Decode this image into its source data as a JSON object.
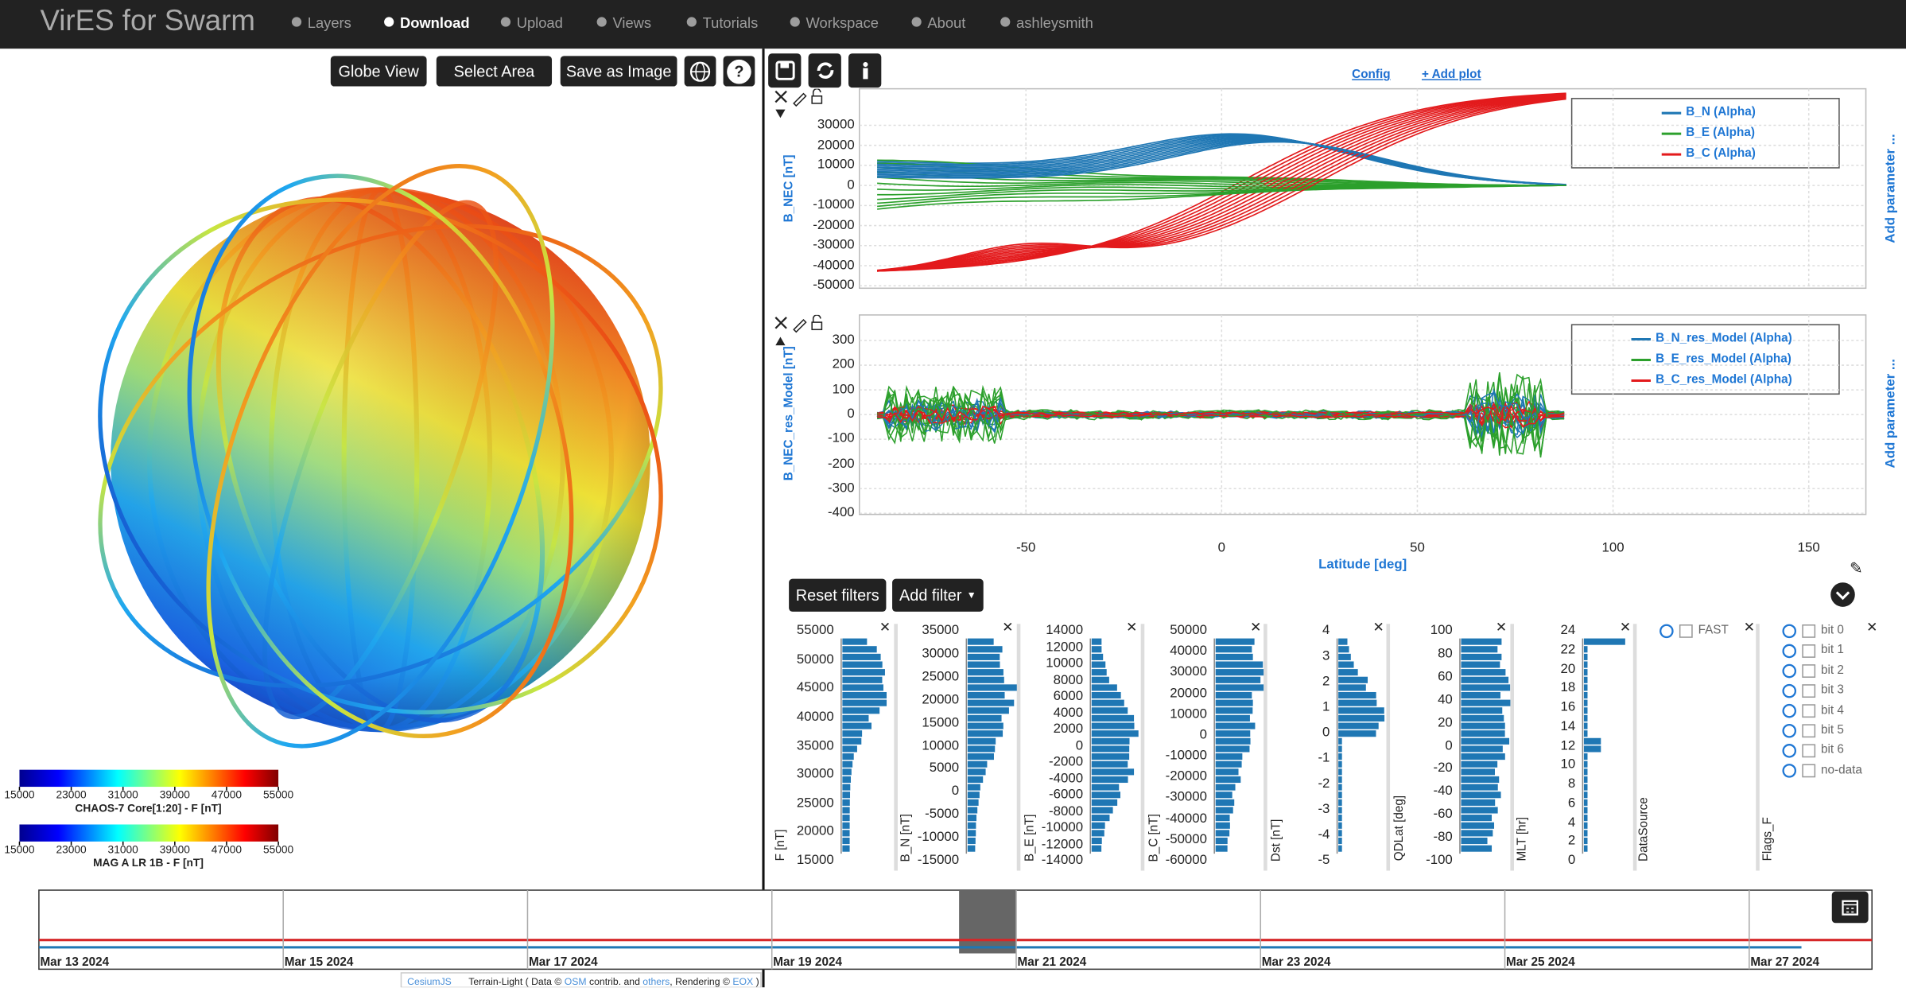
{
  "navbar": {
    "brand": "VirES for Swarm",
    "items": [
      "Layers",
      "Download",
      "Upload",
      "Views",
      "Tutorials",
      "Workspace",
      "About",
      "ashleysmith"
    ]
  },
  "globe_panel": {
    "buttons": [
      "Globe View",
      "Select Area",
      "Save as Image"
    ],
    "help": "?",
    "colorbars": [
      {
        "ticks": [
          15000,
          23000,
          31000,
          39000,
          47000,
          55000
        ],
        "label": "CHAOS-7 Core[1:20] - F [nT]"
      },
      {
        "ticks": [
          15000,
          23000,
          31000,
          39000,
          47000,
          55000
        ],
        "label": "MAG A LR 1B - F [nT]"
      }
    ]
  },
  "analytics": {
    "links": [
      "Config",
      "+ Add plot"
    ],
    "plots": [
      {
        "ylabel": "B_NEC [nT]",
        "yticks": [
          30000,
          20000,
          10000,
          0,
          -10000,
          -20000,
          -30000,
          -40000,
          -50000
        ],
        "legend": [
          "B_N (Alpha)",
          "B_E (Alpha)",
          "B_C (Alpha)"
        ],
        "side": "Add parameter ..."
      },
      {
        "ylabel": "B_NEC_res_Model [nT]",
        "yticks": [
          300,
          200,
          100,
          0,
          -100,
          -200,
          -300,
          -400
        ],
        "legend": [
          "B_N_res_Model (Alpha)",
          "B_E_res_Model (Alpha)",
          "B_C_res_Model (Alpha)"
        ],
        "side": "Add parameter ..."
      }
    ],
    "xticks": [
      -50,
      0,
      50,
      100,
      150
    ],
    "xlabel": "Latitude [deg]"
  },
  "filters": {
    "buttons": [
      "Reset filters",
      "Add filter"
    ],
    "histograms": [
      {
        "label": "F [nT]",
        "ticks": [
          55000,
          50000,
          45000,
          40000,
          35000,
          30000,
          25000,
          20000,
          15000
        ]
      },
      {
        "label": "B_N [nT]",
        "ticks": [
          35000,
          30000,
          25000,
          20000,
          15000,
          10000,
          5000,
          0,
          -5000,
          -10000,
          -15000
        ]
      },
      {
        "label": "B_E [nT]",
        "ticks": [
          14000,
          12000,
          10000,
          8000,
          6000,
          4000,
          2000,
          0,
          -2000,
          -4000,
          -6000,
          -8000,
          -10000,
          -12000,
          -14000
        ]
      },
      {
        "label": "B_C [nT]",
        "ticks": [
          50000,
          40000,
          30000,
          20000,
          10000,
          0,
          -10000,
          -20000,
          -30000,
          -40000,
          -50000,
          -60000
        ]
      },
      {
        "label": "Dst [nT]",
        "ticks": [
          4,
          3,
          2,
          1,
          0,
          -1,
          -2,
          -3,
          -4,
          -5
        ]
      },
      {
        "label": "QDLat [deg]",
        "ticks": [
          100,
          80,
          60,
          40,
          20,
          0,
          -20,
          -40,
          -60,
          -80,
          -100
        ]
      },
      {
        "label": "MLT [hr]",
        "ticks": [
          24,
          22,
          20,
          18,
          16,
          14,
          12,
          10,
          8,
          6,
          4,
          2,
          0
        ]
      }
    ],
    "datasource": {
      "label": "DataSource",
      "options": [
        "FAST"
      ]
    },
    "flags": {
      "label": "Flags_F",
      "options": [
        "bit 0",
        "bit 1",
        "bit 2",
        "bit 3",
        "bit 4",
        "bit 5",
        "bit 6",
        "no-data"
      ]
    }
  },
  "timeline": {
    "dates": [
      "Mar 13 2024",
      "Mar 15 2024",
      "Mar 17 2024",
      "Mar 19 2024",
      "Mar 21 2024",
      "Mar 23 2024",
      "Mar 25 2024",
      "Mar 27 2024"
    ]
  },
  "footer": {
    "parts": [
      "CesiumJS",
      "Terrain-Light ( Data © ",
      "OSM",
      " contrib. and ",
      "others",
      ", Rendering © ",
      "EOX",
      " )"
    ]
  }
}
